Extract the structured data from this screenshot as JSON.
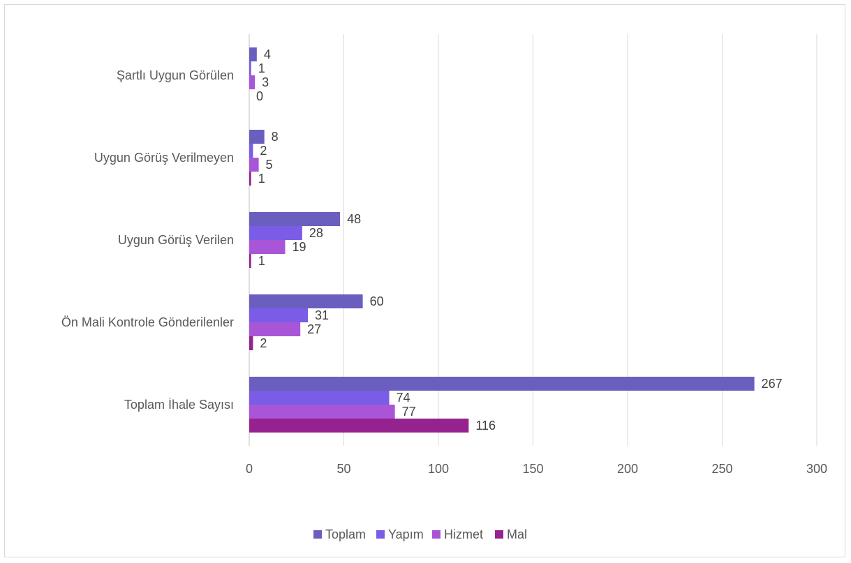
{
  "chart_data": {
    "type": "bar",
    "orientation": "horizontal",
    "categories": [
      "Şartlı Uygun Görülen",
      "Uygun Görüş Verilmeyen",
      "Uygun Görüş Verilen",
      "Ön Mali Kontrole Gönderilenler",
      "Toplam İhale Sayısı"
    ],
    "series": [
      {
        "name": "Toplam",
        "color": "#6a5fbe",
        "values": [
          4,
          8,
          48,
          60,
          267
        ]
      },
      {
        "name": "Yapım",
        "color": "#7b5ce6",
        "values": [
          1,
          2,
          28,
          31,
          74
        ]
      },
      {
        "name": "Hizmet",
        "color": "#a855d8",
        "values": [
          3,
          5,
          19,
          27,
          77
        ]
      },
      {
        "name": "Mal",
        "color": "#96228f",
        "values": [
          0,
          1,
          1,
          2,
          116
        ]
      }
    ],
    "xlim": [
      0,
      300
    ],
    "xticks": [
      "0",
      "50",
      "100",
      "150",
      "200",
      "250",
      "300"
    ],
    "grid": "vertical",
    "legend": "bottom",
    "title": "",
    "xlabel": "",
    "ylabel": ""
  }
}
